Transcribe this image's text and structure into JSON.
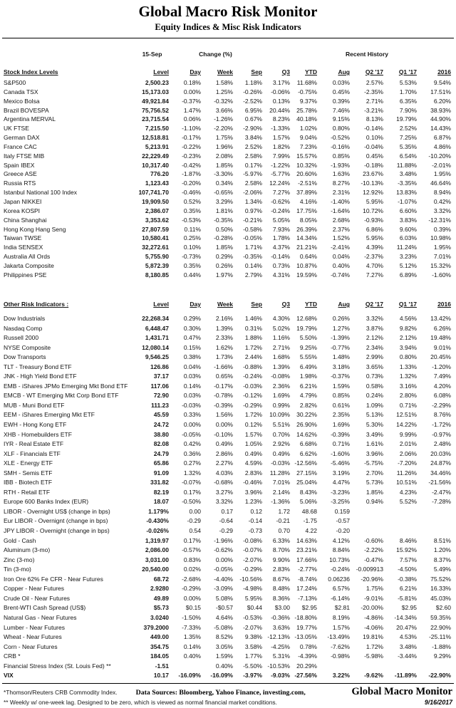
{
  "page": {
    "title": "Global Macro Risk Monitor",
    "subtitle": "Equity Indices & Misc Risk Indicators",
    "date_label": "15-Sep",
    "change_label": "Change (%)",
    "recent_label": "Recent History"
  },
  "columns": [
    "Level",
    "Day",
    "Week",
    "Sep",
    "Q3",
    "YTD",
    "Aug",
    "Q2 '17",
    "Q1 '17",
    "2016"
  ],
  "tables": {
    "stock": {
      "section_label": "Stock Index Levels",
      "rows": [
        {
          "label": "S&P500",
          "values": [
            "2,500.23",
            "0.18%",
            "1.58%",
            "1.18%",
            "3.17%",
            "11.68%",
            "0.03%",
            "2.57%",
            "5.53%",
            "9.54%"
          ]
        },
        {
          "label": "Canada TSX",
          "values": [
            "15,173.03",
            "0.00%",
            "1.25%",
            "-0.26%",
            "-0.06%",
            "-0.75%",
            "0.45%",
            "-2.35%",
            "1.70%",
            "17.51%"
          ]
        },
        {
          "label": "Mexico Bolsa",
          "values": [
            "49,921.84",
            "-0.37%",
            "-0.32%",
            "-2.52%",
            "0.13%",
            "9.37%",
            "0.39%",
            "2.71%",
            "6.35%",
            "6.20%"
          ]
        },
        {
          "label": "Brazil BOVESPA",
          "values": [
            "75,756.52",
            "1.47%",
            "3.66%",
            "6.95%",
            "20.44%",
            "25.78%",
            "7.46%",
            "-3.21%",
            "7.90%",
            "38.93%"
          ]
        },
        {
          "label": "Argentina MERVAL",
          "values": [
            "23,715.54",
            "0.06%",
            "-1.26%",
            "0.67%",
            "8.23%",
            "40.18%",
            "9.15%",
            "8.13%",
            "19.79%",
            "44.90%"
          ]
        },
        {
          "label": "UK FTSE",
          "values": [
            "7,215.50",
            "-1.10%",
            "-2.20%",
            "-2.90%",
            "-1.33%",
            "1.02%",
            "0.80%",
            "-0.14%",
            "2.52%",
            "14.43%"
          ]
        },
        {
          "label": "German DAX",
          "values": [
            "12,518.81",
            "-0.17%",
            "1.75%",
            "3.84%",
            "1.57%",
            "9.04%",
            "-0.52%",
            "0.10%",
            "7.25%",
            "6.87%"
          ]
        },
        {
          "label": "France CAC",
          "values": [
            "5,213.91",
            "-0.22%",
            "1.96%",
            "2.52%",
            "1.82%",
            "7.23%",
            "-0.16%",
            "-0.04%",
            "5.35%",
            "4.86%"
          ]
        },
        {
          "label": "Italy FTSE MIB",
          "values": [
            "22,229.49",
            "-0.23%",
            "2.08%",
            "2.58%",
            "7.99%",
            "15.57%",
            "0.85%",
            "0.45%",
            "6.54%",
            "-10.20%"
          ]
        },
        {
          "label": "Spain IBEX",
          "values": [
            "10,317.40",
            "-0.42%",
            "1.85%",
            "0.17%",
            "-1.22%",
            "10.32%",
            "-1.93%",
            "-0.18%",
            "11.88%",
            "-2.01%"
          ]
        },
        {
          "label": "Greece ASE",
          "values": [
            "776.20",
            "-1.87%",
            "-3.30%",
            "-5.97%",
            "-5.77%",
            "20.60%",
            "1.63%",
            "23.67%",
            "3.48%",
            "1.95%"
          ]
        },
        {
          "label": "Russia RTS",
          "values": [
            "1,123.43",
            "-0.20%",
            "0.34%",
            "2.58%",
            "12.24%",
            "-2.51%",
            "8.27%",
            "-10.13%",
            "-3.35%",
            "46.64%"
          ]
        },
        {
          "label": "Istanbul National 100 Index",
          "values": [
            "107,741.70",
            "-0.46%",
            "-0.65%",
            "-2.06%",
            "7.27%",
            "37.89%",
            "2.31%",
            "12.92%",
            "13.83%",
            "8.94%"
          ]
        },
        {
          "label": "Japan NIKKEI",
          "values": [
            "19,909.50",
            "0.52%",
            "3.29%",
            "1.34%",
            "-0.62%",
            "4.16%",
            "-1.40%",
            "5.95%",
            "-1.07%",
            "0.42%"
          ]
        },
        {
          "label": "Korea KOSPI",
          "values": [
            "2,386.07",
            "0.35%",
            "1.81%",
            "0.97%",
            "-0.24%",
            "17.75%",
            "-1.64%",
            "10.72%",
            "6.60%",
            "3.32%"
          ]
        },
        {
          "label": "China Shanghai",
          "values": [
            "3,353.62",
            "-0.53%",
            "-0.35%",
            "-0.21%",
            "5.05%",
            "8.05%",
            "2.68%",
            "-0.93%",
            "3.83%",
            "-12.31%"
          ]
        },
        {
          "label": "Hong Kong Hang Seng",
          "values": [
            "27,807.59",
            "0.11%",
            "0.50%",
            "-0.58%",
            "7.93%",
            "26.39%",
            "2.37%",
            "6.86%",
            "9.60%",
            "0.39%"
          ]
        },
        {
          "label": "Taiwan  TWSE",
          "values": [
            "10,580.41",
            "0.25%",
            "-0.28%",
            "-0.05%",
            "1.78%",
            "14.34%",
            "1.52%",
            "5.95%",
            "6.03%",
            "10.98%"
          ]
        },
        {
          "label": "India SENSEX",
          "values": [
            "32,272.61",
            "0.10%",
            "1.85%",
            "1.71%",
            "4.37%",
            "21.21%",
            "-2.41%",
            "4.39%",
            "11.24%",
            "1.95%"
          ]
        },
        {
          "label": "Australia All Ords",
          "values": [
            "5,755.90",
            "-0.73%",
            "0.29%",
            "-0.35%",
            "-0.14%",
            "0.64%",
            "0.04%",
            "-2.37%",
            "3.23%",
            "7.01%"
          ]
        },
        {
          "label": "Jakarta Composite",
          "values": [
            "5,872.39",
            "0.35%",
            "0.26%",
            "0.14%",
            "0.73%",
            "10.87%",
            "0.40%",
            "4.70%",
            "5.12%",
            "15.32%"
          ]
        },
        {
          "label": "Philippines PSE",
          "values": [
            "8,180.85",
            "0.44%",
            "1.97%",
            "2.79%",
            "4.31%",
            "19.59%",
            "-0.74%",
            "7.27%",
            "6.89%",
            "-1.60%"
          ]
        }
      ]
    },
    "risk": {
      "section_label": "Other Risk Indicators :",
      "rows": [
        {
          "label": "Dow Industrials",
          "values": [
            "22,268.34",
            "0.29%",
            "2.16%",
            "1.46%",
            "4.30%",
            "12.68%",
            "0.26%",
            "3.32%",
            "4.56%",
            "13.42%"
          ]
        },
        {
          "label": "Nasdaq Comp",
          "values": [
            "6,448.47",
            "0.30%",
            "1.39%",
            "0.31%",
            "5.02%",
            "19.79%",
            "1.27%",
            "3.87%",
            "9.82%",
            "6.26%"
          ]
        },
        {
          "label": "Russell 2000",
          "values": [
            "1,431.71",
            "0.47%",
            "2.33%",
            "1.88%",
            "1.16%",
            "5.50%",
            "-1.39%",
            "2.12%",
            "2.12%",
            "19.48%"
          ]
        },
        {
          "label": "NYSE Composite",
          "values": [
            "12,080.14",
            "0.15%",
            "1.62%",
            "1.72%",
            "2.71%",
            "9.25%",
            "-0.77%",
            "2.34%",
            "3.94%",
            "9.01%"
          ]
        },
        {
          "label": "Dow Transports",
          "values": [
            "9,546.25",
            "0.38%",
            "1.73%",
            "2.44%",
            "1.68%",
            "5.55%",
            "1.48%",
            "2.99%",
            "0.80%",
            "20.45%"
          ]
        },
        {
          "label": "TLT - Treasury Bond ETF",
          "values": [
            "126.86",
            "0.04%",
            "-1.66%",
            "-0.88%",
            "1.39%",
            "6.49%",
            "3.18%",
            "3.65%",
            "1.33%",
            "-1.20%"
          ]
        },
        {
          "label": "JNK - High Yield Bond ETF",
          "values": [
            "37.17",
            "0.03%",
            "0.65%",
            "-0.24%",
            "-0.08%",
            "1.98%",
            "-0.37%",
            "0.73%",
            "1.32%",
            "7.49%"
          ]
        },
        {
          "label": "EMB - iShares JPMo Emerging Mkt Bond ETF",
          "values": [
            "117.06",
            "0.14%",
            "-0.17%",
            "-0.03%",
            "2.36%",
            "6.21%",
            "1.59%",
            "0.58%",
            "3.16%",
            "4.20%"
          ]
        },
        {
          "label": "EMCB - WT Emerging Mkt Corp Bond ETF",
          "values": [
            "72.90",
            "0.03%",
            "-0.78%",
            "-0.12%",
            "1.69%",
            "4.79%",
            "0.85%",
            "0.24%",
            "2.80%",
            "6.08%"
          ]
        },
        {
          "label": "MUB - Muni Bond ETF",
          "values": [
            "111.23",
            "-0.03%",
            "-0.39%",
            "-0.29%",
            "0.99%",
            "2.82%",
            "0.61%",
            "1.09%",
            "0.71%",
            "-2.29%"
          ]
        },
        {
          "label": "EEM - iShares Emerging Mkt ETF",
          "values": [
            "45.59",
            "0.33%",
            "1.56%",
            "1.72%",
            "10.09%",
            "30.22%",
            "2.35%",
            "5.13%",
            "12.51%",
            "8.76%"
          ]
        },
        {
          "label": "EWH - Hong Kong ETF",
          "values": [
            "24.72",
            "0.00%",
            "0.00%",
            "0.12%",
            "5.51%",
            "26.90%",
            "1.69%",
            "5.30%",
            "14.22%",
            "-1.72%"
          ]
        },
        {
          "label": "XHB - Homebuilders ETF",
          "values": [
            "38.80",
            "-0.05%",
            "-0.10%",
            "1.57%",
            "0.70%",
            "14.62%",
            "-0.39%",
            "3.49%",
            "9.99%",
            "-0.97%"
          ]
        },
        {
          "label": "IYR - Real Estate ETF",
          "values": [
            "82.08",
            "0.42%",
            "0.49%",
            "1.05%",
            "2.92%",
            "6.68%",
            "0.71%",
            "1.61%",
            "2.01%",
            "2.48%"
          ]
        },
        {
          "label": "XLF - Financials ETF",
          "values": [
            "24.79",
            "0.36%",
            "2.86%",
            "0.49%",
            "0.49%",
            "6.62%",
            "-1.60%",
            "3.96%",
            "2.06%",
            "20.03%"
          ]
        },
        {
          "label": "XLE - Energy ETF",
          "values": [
            "65.86",
            "0.27%",
            "2.27%",
            "4.59%",
            "-0.03%",
            "-12.56%",
            "-5.46%",
            "-5.75%",
            "-7.20%",
            "24.87%"
          ]
        },
        {
          "label": "SMH - Semis ETF",
          "values": [
            "91.09",
            "1.32%",
            "4.03%",
            "2.83%",
            "11.28%",
            "27.15%",
            "3.19%",
            "2.70%",
            "11.26%",
            "34.46%"
          ]
        },
        {
          "label": "IBB - Biotech ETF",
          "values": [
            "331.82",
            "-0.07%",
            "-0.68%",
            "-0.46%",
            "7.01%",
            "25.04%",
            "4.47%",
            "5.73%",
            "10.51%",
            "-21.56%"
          ]
        },
        {
          "label": "RTH - Retail ETF",
          "values": [
            "82.19",
            "0.17%",
            "3.27%",
            "3.96%",
            "2.14%",
            "8.43%",
            "-3.23%",
            "1.85%",
            "4.23%",
            "-2.47%"
          ]
        },
        {
          "label": "Europe 600 Banks Index (EUR)",
          "values": [
            "18.07",
            "-0.50%",
            "3.32%",
            "1.23%",
            "-1.36%",
            "5.06%",
            "-3.25%",
            "0.94%",
            "5.52%",
            "-7.28%"
          ]
        },
        {
          "label": "LIBOR - Overnight US$  (change in bps)",
          "values": [
            "1.179%",
            "0.00",
            "0.17",
            "0.12",
            "1.72",
            "48.68",
            "0.159",
            "",
            "",
            ""
          ]
        },
        {
          "label": "Eur LIBOR - Overnignt (change in bps)",
          "values": [
            "-0.430%",
            "-0.29",
            "-0.64",
            "-0.14",
            "-0.21",
            "-1.75",
            "-0.57",
            "",
            "",
            ""
          ]
        },
        {
          "label": "JPY LIBOR - Overnight (change in bps)",
          "values": [
            "-0.026%",
            "0.54",
            "-0.29",
            "-0.73",
            "0.70",
            "4.22",
            "-0.20",
            "",
            "",
            ""
          ]
        },
        {
          "label": "Gold - Cash",
          "values": [
            "1,319.97",
            "0.17%",
            "-1.96%",
            "-0.08%",
            "6.33%",
            "14.63%",
            "4.12%",
            "-0.60%",
            "8.46%",
            "8.51%"
          ]
        },
        {
          "label": "Aluminum (3-mo)",
          "values": [
            "2,086.00",
            "-0.57%",
            "-0.62%",
            "-0.07%",
            "8.70%",
            "23.21%",
            "8.84%",
            "-2.22%",
            "15.92%",
            "1.20%"
          ]
        },
        {
          "label": "Zinc (3-mo)",
          "values": [
            "3,031.00",
            "0.83%",
            "0.00%",
            "-2.07%",
            "9.90%",
            "17.66%",
            "10.73%",
            "-0.47%",
            "7.57%",
            "8.37%"
          ]
        },
        {
          "label": "Tin (3-mo)",
          "values": [
            "20,540.00",
            "0.02%",
            "-0.05%",
            "-0.29%",
            "2.83%",
            "-2.77%",
            "-0.24%",
            "-0.009913",
            "-4.50%",
            "5.49%"
          ]
        },
        {
          "label": "Iron Ore 62% Fe CFR - Near Futures",
          "values": [
            "68.72",
            "-2.68%",
            "-4.40%",
            "-10.56%",
            "8.67%",
            "-8.74%",
            "0.06236",
            "-20.96%",
            "-0.38%",
            "75.52%"
          ]
        },
        {
          "label": "Copper - Near Futures",
          "values": [
            "2.9280",
            "-0.29%",
            "-3.09%",
            "-4.98%",
            "8.48%",
            "17.24%",
            "6.57%",
            "1.75%",
            "6.21%",
            "16.33%"
          ]
        },
        {
          "label": "Crude Oil - Near Futures",
          "values": [
            "49.89",
            "0.00%",
            "5.08%",
            "5.95%",
            "8.36%",
            "-7.13%",
            "-6.14%",
            "-9.01%",
            "-5.81%",
            "45.03%"
          ]
        },
        {
          "label": "Brent-WTI Cash Spread (US$)",
          "values": [
            "$5.73",
            "$0.15",
            "-$0.57",
            "$0.44",
            "$3.00",
            "$2.95",
            "$2.81",
            "-20.00%",
            "$2.95",
            "$2.60"
          ]
        },
        {
          "label": "Natural Gas - Near Futures",
          "values": [
            "3.0240",
            "-1.50%",
            "4.64%",
            "-0.53%",
            "-0.36%",
            "-18.80%",
            "8.19%",
            "-4.86%",
            "-14.34%",
            "59.35%"
          ]
        },
        {
          "label": "Lumber - Near Futures",
          "values": [
            "379.2000",
            "-7.33%",
            "-5.08%",
            "-2.07%",
            "3.63%",
            "19.77%",
            "1.57%",
            "-4.06%",
            "20.47%",
            "22.90%"
          ]
        },
        {
          "label": "Wheat - Near Futures",
          "values": [
            "449.00",
            "1.35%",
            "8.52%",
            "9.38%",
            "-12.13%",
            "-13.05%",
            "-13.49%",
            "19.81%",
            "4.53%",
            "-25.11%"
          ]
        },
        {
          "label": "Corn - Near Futures",
          "values": [
            "354.75",
            "0.14%",
            "3.05%",
            "3.58%",
            "-4.25%",
            "0.78%",
            "-7.62%",
            "1.72%",
            "3.48%",
            "-1.88%"
          ]
        },
        {
          "label": "CRB *",
          "values": [
            "184.05",
            "0.40%",
            "1.59%",
            "1.77%",
            "5.31%",
            "-4.39%",
            "-0.98%",
            "-5.98%",
            "-3.44%",
            "9.29%"
          ]
        },
        {
          "label": "Financial Stress Index (St. Louis Fed) **",
          "values": [
            "-1.51",
            "",
            "0.40%",
            "-5.50%",
            "-10.53%",
            "20.29%",
            "",
            "",
            "",
            ""
          ]
        },
        {
          "label": "VIX",
          "bold": true,
          "values": [
            "10.17",
            "-16.09%",
            "-16.09%",
            "-3.97%",
            "-9.03%",
            "-27.56%",
            "3.22%",
            "-9.62%",
            "-11.89%",
            "-22.90%"
          ]
        }
      ]
    }
  },
  "footer": {
    "footnote1": "*Thomson/Reuters CRB Commodity Index.",
    "data_sources": "Data Sources:  Bloomberg,  Yahoo Finance, investing.com,",
    "brand": "Global Macro Monitor",
    "footnote2": "** Weekly w/ one-week lag. Designed to be zero, which is viewed as normal financial market conditions.",
    "report_date": "9/16/2017"
  }
}
